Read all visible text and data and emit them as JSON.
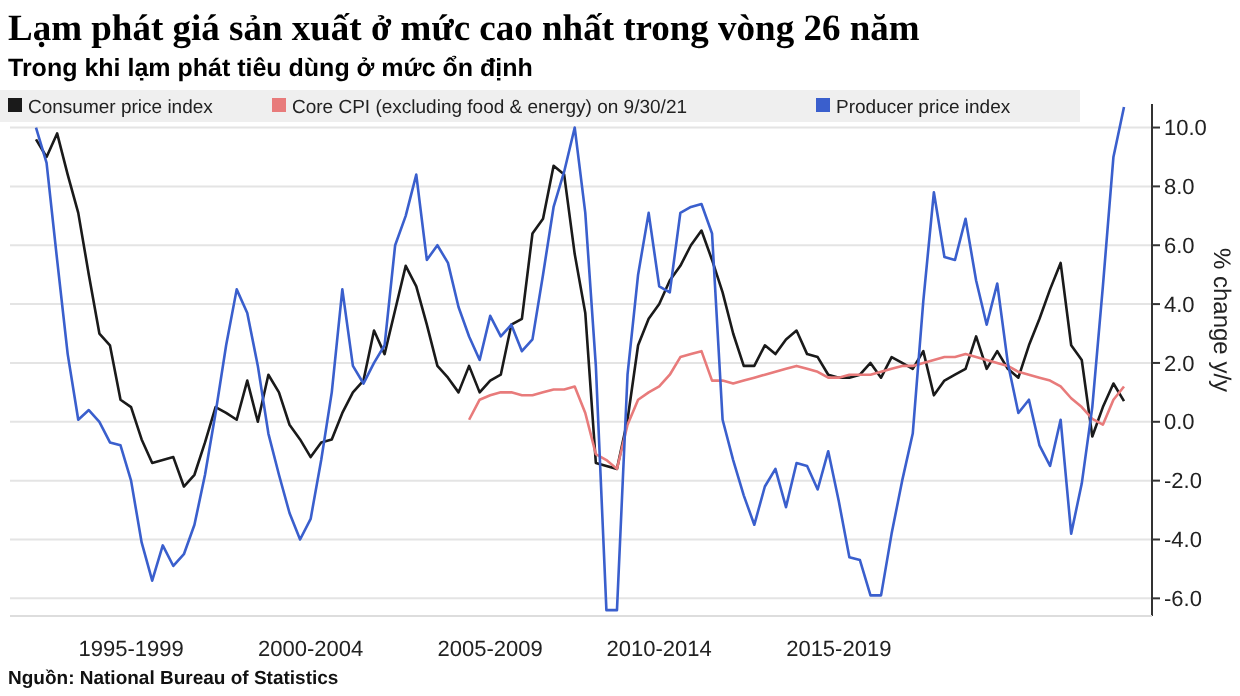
{
  "chart_data": {
    "type": "line",
    "title": "Lạm phát giá sản xuất ở mức cao nhất trong vòng 26 năm",
    "subtitle": "Trong khi lạm phát tiêu dùng ở mức ổn định",
    "ylabel": "% change y/y",
    "annotations": [
      "Nguồn: National Bureau of Statistics"
    ],
    "categories": [
      null,
      null,
      null,
      null,
      null,
      null,
      null,
      null,
      null,
      "1995-1999",
      null,
      null,
      null,
      null,
      null,
      null,
      null,
      null,
      null,
      null,
      null,
      null,
      null,
      null,
      null,
      null,
      "2000-2004",
      null,
      null,
      null,
      null,
      null,
      null,
      null,
      null,
      null,
      null,
      null,
      null,
      null,
      null,
      null,
      null,
      "2005-2009",
      null,
      null,
      null,
      null,
      null,
      null,
      null,
      null,
      null,
      null,
      null,
      null,
      null,
      null,
      null,
      "2010-2014",
      null,
      null,
      null,
      null,
      null,
      null,
      null,
      null,
      null,
      null,
      null,
      null,
      null,
      null,
      null,
      null,
      "2015-2019",
      null,
      null,
      null,
      null,
      null,
      null,
      null,
      null,
      null,
      null,
      null,
      null,
      null,
      null,
      null,
      null,
      null,
      null,
      null,
      null,
      null,
      null,
      null,
      null,
      null,
      null,
      null
    ],
    "ylim": [
      -6.6,
      10.8
    ],
    "yticks": [
      {
        "value": -6,
        "label": "-6.0"
      },
      {
        "value": -4,
        "label": "-4.0"
      },
      {
        "value": -2,
        "label": "-2.0"
      },
      {
        "value": 0,
        "label": "0.0"
      },
      {
        "value": 2,
        "label": "2.0"
      },
      {
        "value": 4,
        "label": "4.0"
      },
      {
        "value": 6,
        "label": "6.0"
      },
      {
        "value": 8,
        "label": "8.0"
      },
      {
        "value": 10,
        "label": "10.0"
      }
    ],
    "grid": "y",
    "legend": "top left",
    "series": [
      {
        "name": "Consumer price index",
        "color": "#1a1a1a",
        "values": [
          9.6,
          9.0,
          9.8,
          8.4,
          7.1,
          5.0,
          3.0,
          2.6,
          0.75,
          0.5,
          -0.6,
          -1.4,
          -1.3,
          -1.2,
          -2.2,
          -1.8,
          -0.7,
          0.5,
          0.3,
          0.07,
          1.4,
          0,
          1.6,
          1.0,
          -0.1,
          -0.6,
          -1.2,
          -0.7,
          -0.6,
          0.3,
          1.0,
          1.4,
          3.1,
          2.3,
          3.8,
          5.3,
          4.6,
          3.3,
          1.9,
          1.5,
          1.0,
          1.9,
          1.0,
          1.4,
          1.6,
          3.3,
          3.5,
          6.4,
          6.9,
          8.7,
          8.4,
          5.7,
          3.7,
          -1.4,
          -1.5,
          -1.6,
          0.07,
          2.6,
          3.5,
          4.0,
          4.8,
          5.3,
          6.0,
          6.5,
          5.5,
          4.4,
          3.0,
          1.9,
          1.9,
          2.6,
          2.3,
          2.8,
          3.1,
          2.3,
          2.2,
          1.6,
          1.5,
          1.5,
          1.6,
          2.0,
          1.5,
          2.2,
          2.0,
          1.8,
          2.4,
          0.9,
          1.4,
          1.6,
          1.8,
          2.9,
          1.8,
          2.4,
          1.8,
          1.5,
          2.6,
          3.5,
          4.5,
          5.4,
          2.6,
          2.1,
          -0.5,
          0.5,
          1.3,
          0.7
        ]
      },
      {
        "name": "Core CPI (excluding food & energy) on 9/30/21",
        "color": "#e87b7b",
        "values": [
          null,
          null,
          null,
          null,
          null,
          null,
          null,
          null,
          null,
          null,
          null,
          null,
          null,
          null,
          null,
          null,
          null,
          null,
          null,
          null,
          null,
          null,
          null,
          null,
          null,
          null,
          null,
          null,
          null,
          null,
          null,
          null,
          null,
          null,
          null,
          null,
          null,
          null,
          null,
          null,
          null,
          0.07,
          0.75,
          0.9,
          1.0,
          1.0,
          0.9,
          0.9,
          1.0,
          1.1,
          1.1,
          1.2,
          0.3,
          -1.1,
          -1.3,
          -1.6,
          -0.1,
          0.75,
          1.0,
          1.2,
          1.6,
          2.2,
          2.3,
          2.4,
          1.4,
          1.4,
          1.3,
          1.4,
          1.5,
          1.6,
          1.7,
          1.8,
          1.9,
          1.8,
          1.7,
          1.5,
          1.5,
          1.6,
          1.6,
          1.6,
          1.7,
          1.8,
          1.9,
          1.9,
          2.0,
          2.1,
          2.2,
          2.2,
          2.3,
          2.2,
          2.1,
          2.0,
          1.9,
          1.7,
          1.6,
          1.5,
          1.4,
          1.2,
          0.8,
          0.5,
          0.1,
          -0.1,
          0.75,
          1.2
        ]
      },
      {
        "name": "Producer price index",
        "color": "#3a5fcd",
        "values": [
          10.0,
          8.8,
          5.5,
          2.3,
          0.07,
          0.4,
          0.0,
          -0.7,
          -0.8,
          -2.0,
          -4.1,
          -5.4,
          -4.2,
          -4.9,
          -4.5,
          -3.5,
          -1.8,
          0.3,
          2.6,
          4.5,
          3.7,
          1.9,
          -0.4,
          -1.8,
          -3.1,
          -4.0,
          -3.3,
          -1.3,
          1.0,
          4.5,
          1.9,
          1.3,
          2.0,
          2.6,
          6.0,
          7.0,
          8.4,
          5.5,
          6.0,
          5.4,
          3.9,
          2.9,
          2.1,
          3.6,
          2.9,
          3.3,
          2.4,
          2.8,
          5.0,
          7.3,
          8.5,
          10.0,
          7.1,
          1.9,
          -6.4,
          -6.4,
          1.6,
          5.0,
          7.1,
          4.6,
          4.4,
          7.1,
          7.3,
          7.4,
          6.4,
          0.07,
          -1.3,
          -2.5,
          -3.5,
          -2.2,
          -1.6,
          -2.9,
          -1.4,
          -1.5,
          -2.3,
          -1.0,
          -2.7,
          -4.6,
          -4.7,
          -5.9,
          -5.9,
          -3.8,
          -2.0,
          -0.4,
          4.1,
          7.8,
          5.6,
          5.5,
          6.9,
          4.8,
          3.3,
          4.7,
          2.0,
          0.3,
          0.75,
          -0.8,
          -1.5,
          0.07,
          -3.8,
          -2.1,
          0.5,
          4.6,
          9.0,
          10.7
        ]
      }
    ]
  }
}
